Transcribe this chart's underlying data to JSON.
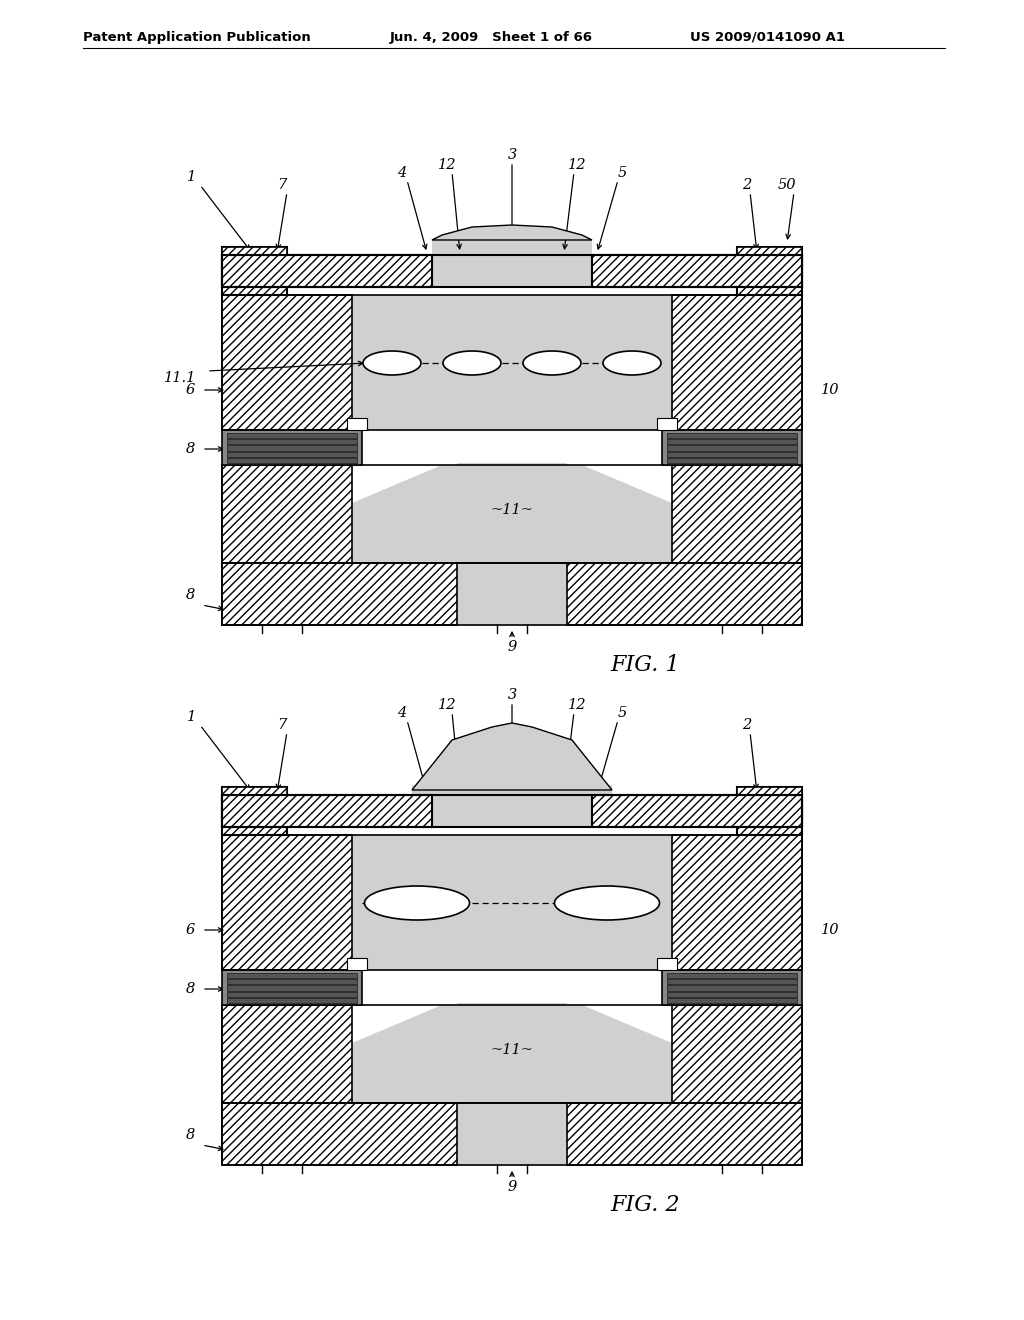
{
  "bg": "#ffffff",
  "lc": "#000000",
  "ink": "#d0d0d0",
  "gray": "#888888",
  "dgray": "#555555",
  "hdr1": "Patent Application Publication",
  "hdr2": "Jun. 4, 2009   Sheet 1 of 66",
  "hdr3": "US 2009/0141090 A1",
  "cap1": "FIG. 1",
  "cap2": "FIG. 2"
}
